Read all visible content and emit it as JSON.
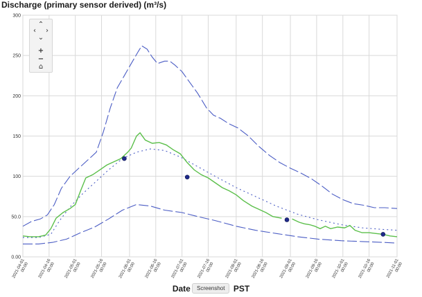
{
  "chart_data": {
    "type": "line",
    "title": "Discharge (primary sensor derived) (m³/s)",
    "xlabel": "Date (UTC)... PST",
    "xlabel_left": "Date",
    "xlabel_right": "PST",
    "ylim": [
      0,
      300
    ],
    "yticks": [
      "0.00",
      "50.0",
      "100",
      "150",
      "200",
      "250",
      "300"
    ],
    "ytick_values": [
      0,
      50,
      100,
      150,
      200,
      250,
      300
    ],
    "xlim": [
      "2021-04-01",
      "2021-11-01"
    ],
    "xticks": [
      {
        "date": "2021-04-01",
        "l1": "2021-04-01",
        "l2": "00:00"
      },
      {
        "date": "2021-04-16",
        "l1": "2021-04-16",
        "l2": "00:00"
      },
      {
        "date": "2021-05-01",
        "l1": "2021-05-01",
        "l2": "00:00"
      },
      {
        "date": "2021-05-16",
        "l1": "2021-05-16",
        "l2": "00:00"
      },
      {
        "date": "2021-06-01",
        "l1": "2021-06-01",
        "l2": "00:00"
      },
      {
        "date": "2021-06-16",
        "l1": "2021-06-16",
        "l2": "00:00"
      },
      {
        "date": "2021-07-01",
        "l1": "2021-07-01",
        "l2": "00:00"
      },
      {
        "date": "2021-07-16",
        "l1": "2021-07-16",
        "l2": "00:00"
      },
      {
        "date": "2021-08-01",
        "l1": "2021-08-01",
        "l2": "00:00"
      },
      {
        "date": "2021-08-16",
        "l1": "2021-08-16",
        "l2": "00:00"
      },
      {
        "date": "2021-09-01",
        "l1": "2021-09-01",
        "l2": "00:00"
      },
      {
        "date": "2021-09-16",
        "l1": "2021-09-16",
        "l2": "00:00"
      },
      {
        "date": "2021-10-01",
        "l1": "2021-10-01",
        "l2": "00:00"
      },
      {
        "date": "2021-10-16",
        "l1": "2021-10-16",
        "l2": "00:00"
      },
      {
        "date": "2021-11-01",
        "l1": "2021-11-01",
        "l2": "00:00"
      }
    ],
    "grid": true,
    "series": [
      {
        "key": "upper",
        "color": "#4a5cc4",
        "style": "longdash",
        "points": [
          [
            "2021-04-01",
            38
          ],
          [
            "2021-04-06",
            44
          ],
          [
            "2021-04-11",
            47
          ],
          [
            "2021-04-15",
            52
          ],
          [
            "2021-04-19",
            65
          ],
          [
            "2021-04-23",
            85
          ],
          [
            "2021-04-28",
            100
          ],
          [
            "2021-05-03",
            110
          ],
          [
            "2021-05-08",
            120
          ],
          [
            "2021-05-13",
            130
          ],
          [
            "2021-05-17",
            155
          ],
          [
            "2021-05-21",
            185
          ],
          [
            "2021-05-25",
            210
          ],
          [
            "2021-05-29",
            225
          ],
          [
            "2021-06-02",
            240
          ],
          [
            "2021-06-06",
            255
          ],
          [
            "2021-06-08",
            262
          ],
          [
            "2021-06-11",
            258
          ],
          [
            "2021-06-14",
            248
          ],
          [
            "2021-06-17",
            240
          ],
          [
            "2021-06-21",
            243
          ],
          [
            "2021-06-24",
            243
          ],
          [
            "2021-06-27",
            238
          ],
          [
            "2021-07-01",
            230
          ],
          [
            "2021-07-05",
            218
          ],
          [
            "2021-07-10",
            203
          ],
          [
            "2021-07-15",
            185
          ],
          [
            "2021-07-19",
            176
          ],
          [
            "2021-07-23",
            172
          ],
          [
            "2021-07-28",
            165
          ],
          [
            "2021-08-02",
            160
          ],
          [
            "2021-08-08",
            150
          ],
          [
            "2021-08-14",
            137
          ],
          [
            "2021-08-20",
            126
          ],
          [
            "2021-08-26",
            117
          ],
          [
            "2021-09-01",
            110
          ],
          [
            "2021-09-07",
            104
          ],
          [
            "2021-09-13",
            97
          ],
          [
            "2021-09-19",
            88
          ],
          [
            "2021-09-25",
            78
          ],
          [
            "2021-10-01",
            71
          ],
          [
            "2021-10-07",
            66
          ],
          [
            "2021-10-13",
            64
          ],
          [
            "2021-10-19",
            61
          ],
          [
            "2021-10-25",
            61
          ],
          [
            "2021-11-01",
            60
          ]
        ]
      },
      {
        "key": "median",
        "color": "#4a5cc4",
        "style": "dot",
        "points": [
          [
            "2021-04-01",
            24
          ],
          [
            "2021-04-10",
            24
          ],
          [
            "2021-04-17",
            28
          ],
          [
            "2021-04-22",
            45
          ],
          [
            "2021-04-28",
            62
          ],
          [
            "2021-05-05",
            78
          ],
          [
            "2021-05-12",
            92
          ],
          [
            "2021-05-20",
            108
          ],
          [
            "2021-05-28",
            122
          ],
          [
            "2021-06-05",
            130
          ],
          [
            "2021-06-13",
            134
          ],
          [
            "2021-06-21",
            132
          ],
          [
            "2021-06-30",
            124
          ],
          [
            "2021-07-10",
            112
          ],
          [
            "2021-07-20",
            100
          ],
          [
            "2021-08-01",
            86
          ],
          [
            "2021-08-12",
            75
          ],
          [
            "2021-08-24",
            63
          ],
          [
            "2021-09-05",
            53
          ],
          [
            "2021-09-17",
            46
          ],
          [
            "2021-09-30",
            40
          ],
          [
            "2021-10-12",
            36
          ],
          [
            "2021-10-24",
            34
          ],
          [
            "2021-11-01",
            33
          ]
        ]
      },
      {
        "key": "lower",
        "color": "#4a5cc4",
        "style": "longdash",
        "points": [
          [
            "2021-04-01",
            16
          ],
          [
            "2021-04-10",
            16
          ],
          [
            "2021-04-18",
            18
          ],
          [
            "2021-04-26",
            22
          ],
          [
            "2021-05-04",
            30
          ],
          [
            "2021-05-12",
            37
          ],
          [
            "2021-05-20",
            47
          ],
          [
            "2021-05-28",
            58
          ],
          [
            "2021-06-05",
            65
          ],
          [
            "2021-06-13",
            63
          ],
          [
            "2021-06-21",
            58
          ],
          [
            "2021-07-01",
            55
          ],
          [
            "2021-07-10",
            50
          ],
          [
            "2021-07-20",
            45
          ],
          [
            "2021-08-01",
            38
          ],
          [
            "2021-08-12",
            33
          ],
          [
            "2021-08-24",
            29
          ],
          [
            "2021-09-05",
            25
          ],
          [
            "2021-09-17",
            22
          ],
          [
            "2021-09-30",
            20
          ],
          [
            "2021-10-12",
            19
          ],
          [
            "2021-10-24",
            18
          ],
          [
            "2021-11-01",
            17
          ]
        ]
      },
      {
        "key": "observed",
        "color": "#5bbf4a",
        "style": "solid",
        "points": [
          [
            "2021-04-01",
            26
          ],
          [
            "2021-04-05",
            25
          ],
          [
            "2021-04-10",
            25
          ],
          [
            "2021-04-14",
            27
          ],
          [
            "2021-04-17",
            35
          ],
          [
            "2021-04-20",
            48
          ],
          [
            "2021-04-24",
            55
          ],
          [
            "2021-04-28",
            60
          ],
          [
            "2021-05-01",
            65
          ],
          [
            "2021-05-04",
            82
          ],
          [
            "2021-05-07",
            98
          ],
          [
            "2021-05-11",
            102
          ],
          [
            "2021-05-15",
            108
          ],
          [
            "2021-05-19",
            114
          ],
          [
            "2021-05-23",
            118
          ],
          [
            "2021-05-27",
            122
          ],
          [
            "2021-05-31",
            130
          ],
          [
            "2021-06-02",
            135
          ],
          [
            "2021-06-05",
            150
          ],
          [
            "2021-06-07",
            154
          ],
          [
            "2021-06-10",
            145
          ],
          [
            "2021-06-14",
            141
          ],
          [
            "2021-06-18",
            142
          ],
          [
            "2021-06-22",
            139
          ],
          [
            "2021-06-26",
            133
          ],
          [
            "2021-06-30",
            128
          ],
          [
            "2021-07-04",
            117
          ],
          [
            "2021-07-08",
            108
          ],
          [
            "2021-07-12",
            102
          ],
          [
            "2021-07-16",
            98
          ],
          [
            "2021-07-20",
            92
          ],
          [
            "2021-07-24",
            86
          ],
          [
            "2021-07-28",
            82
          ],
          [
            "2021-08-01",
            77
          ],
          [
            "2021-08-05",
            70
          ],
          [
            "2021-08-10",
            63
          ],
          [
            "2021-08-14",
            59
          ],
          [
            "2021-08-18",
            55
          ],
          [
            "2021-08-22",
            50
          ],
          [
            "2021-08-27",
            48
          ]
        ]
      },
      {
        "key": "observed2",
        "color": "#5bbf4a",
        "style": "solid",
        "points": [
          [
            "2021-09-02",
            47
          ],
          [
            "2021-09-06",
            43
          ],
          [
            "2021-09-09",
            41
          ],
          [
            "2021-09-12",
            40
          ],
          [
            "2021-09-15",
            38
          ],
          [
            "2021-09-18",
            35
          ],
          [
            "2021-09-21",
            38
          ],
          [
            "2021-09-24",
            35
          ],
          [
            "2021-09-28",
            37
          ],
          [
            "2021-10-02",
            36
          ],
          [
            "2021-10-05",
            39
          ],
          [
            "2021-10-08",
            33
          ],
          [
            "2021-10-12",
            30
          ],
          [
            "2021-10-16",
            30
          ],
          [
            "2021-10-20",
            29
          ],
          [
            "2021-10-24",
            28
          ],
          [
            "2021-10-28",
            26
          ],
          [
            "2021-11-01",
            25
          ]
        ]
      }
    ],
    "markers": {
      "color": "#1f2a8a",
      "points": [
        [
          "2021-05-29",
          122
        ],
        [
          "2021-07-04",
          99
        ],
        [
          "2021-08-30",
          46
        ],
        [
          "2021-10-24",
          28
        ]
      ]
    }
  },
  "nav": {
    "pan_up_icon": "up-chevron-icon",
    "pan_down_icon": "down-chevron-icon",
    "pan_left_icon": "left-chevron-icon",
    "pan_right_icon": "right-chevron-icon",
    "zoom_in_icon": "plus-icon",
    "zoom_out_icon": "minus-icon",
    "home_icon": "home-icon"
  },
  "tooltip": {
    "text": "Screenshot"
  }
}
